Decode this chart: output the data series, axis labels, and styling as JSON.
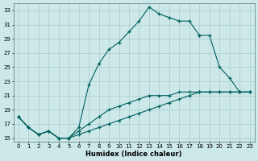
{
  "xlabel": "Humidex (Indice chaleur)",
  "bg_color": "#cce8e8",
  "line_color": "#006060",
  "grid_color": "#aacccc",
  "xlim": [
    -0.5,
    23.5
  ],
  "ylim": [
    14.5,
    34.0
  ],
  "xticks": [
    0,
    1,
    2,
    3,
    4,
    5,
    6,
    7,
    8,
    9,
    10,
    11,
    12,
    13,
    14,
    15,
    16,
    17,
    18,
    19,
    20,
    21,
    22,
    23
  ],
  "yticks": [
    15,
    17,
    19,
    21,
    23,
    25,
    27,
    29,
    31,
    33
  ],
  "series": [
    {
      "x": [
        0,
        1,
        2,
        3,
        4,
        5,
        6,
        7,
        8,
        9,
        10,
        11,
        12,
        13,
        14,
        15,
        16,
        17,
        18
      ],
      "y": [
        18,
        16.5,
        15.5,
        16,
        15,
        15,
        16.5,
        22.5,
        25.5,
        27.5,
        28.5,
        30,
        31.5,
        33.5,
        32.5,
        32,
        31.5,
        31.5,
        29.5
      ]
    },
    {
      "x": [
        0,
        1,
        2,
        3,
        4,
        5,
        6,
        7,
        8,
        9,
        10,
        11,
        12,
        13,
        14,
        15,
        16,
        17,
        18,
        19,
        20,
        21,
        22,
        23
      ],
      "y": [
        18,
        16.5,
        15.5,
        16,
        15,
        15,
        16,
        17,
        18,
        19,
        19.5,
        20,
        20.5,
        21,
        21,
        21,
        21.5,
        21.5,
        21.5,
        21.5,
        21.5,
        21.5,
        21.5,
        21.5
      ]
    },
    {
      "x": [
        0,
        1,
        2,
        3,
        4,
        5,
        6,
        7,
        8,
        9,
        10,
        11,
        12,
        13,
        14,
        15,
        16,
        17,
        18,
        19,
        20,
        21,
        22,
        23
      ],
      "y": [
        18,
        16.5,
        15.5,
        16,
        15,
        15,
        15.5,
        16,
        16.5,
        17,
        17.5,
        18,
        18.5,
        19,
        19.5,
        20,
        20.5,
        21,
        21.5,
        21.5,
        21.5,
        21.5,
        21.5,
        21.5
      ]
    },
    {
      "x": [
        18,
        19,
        20,
        21,
        22,
        23
      ],
      "y": [
        29.5,
        29.5,
        25,
        23.5,
        21.5,
        21.5
      ]
    }
  ]
}
